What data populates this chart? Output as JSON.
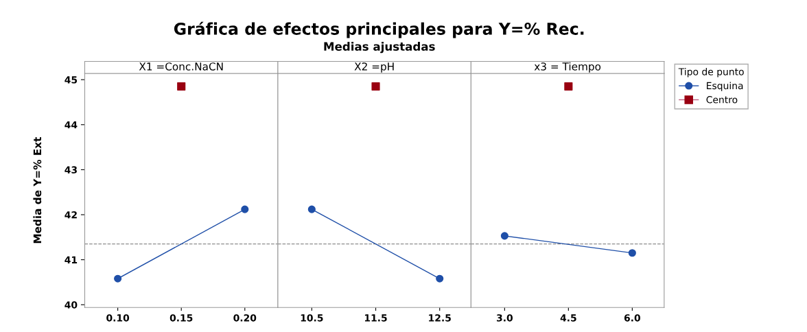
{
  "chart_data": [
    {
      "type": "line",
      "title": "X1 =Conc.NaCN",
      "ylabel": "Media de Y=% Ext",
      "annotations": [
        "Gráfica de efectos principales para Y=% Rec.",
        "Medias ajustadas"
      ],
      "xlim": [
        0.074,
        0.226
      ],
      "xticks": [
        {
          "value": 0.1,
          "label": "0.10"
        },
        {
          "value": 0.15,
          "label": "0.15"
        },
        {
          "value": 0.2,
          "label": "0.20"
        }
      ],
      "ylim": [
        39.94,
        45.14
      ],
      "yticks": [
        40,
        41,
        42,
        43,
        44,
        45
      ],
      "grid": false,
      "marker": "circle",
      "line_style": "solid",
      "ref_lines": [
        {
          "axis": "y",
          "value": 41.35,
          "color": "#8c8c8c",
          "line_style": "dashed"
        }
      ],
      "series": [
        {
          "color": "#1f4fa8",
          "x": [
            0.1,
            0.2
          ],
          "values": [
            40.58,
            42.12
          ]
        },
        {
          "type": "scatter",
          "marker": "square",
          "color": "#990011",
          "x": [
            0.15
          ],
          "values": [
            44.85
          ]
        }
      ]
    },
    {
      "type": "line",
      "title": "X2 =pH",
      "xlim": [
        9.97,
        12.99
      ],
      "xticks": [
        10.5,
        11.5,
        12.5
      ],
      "ylim": [
        39.94,
        45.14
      ],
      "yticks": [
        40,
        41,
        42,
        43,
        44,
        45
      ],
      "tick_labels": "x",
      "grid": false,
      "marker": "circle",
      "line_style": "solid",
      "ref_lines": [
        {
          "axis": "y",
          "value": 41.35,
          "color": "#8c8c8c",
          "line_style": "dashed"
        }
      ],
      "series": [
        {
          "color": "#1f4fa8",
          "x": [
            10.5,
            12.5
          ],
          "values": [
            42.12,
            40.58
          ]
        },
        {
          "type": "scatter",
          "marker": "square",
          "color": "#990011",
          "x": [
            11.5
          ],
          "values": [
            44.85
          ]
        }
      ]
    },
    {
      "type": "line",
      "title": "x3 = Tiempo",
      "xlim": [
        2.21,
        6.75
      ],
      "xticks": [
        {
          "value": 3,
          "label": "3.0"
        },
        {
          "value": 4.5,
          "label": "4.5"
        },
        {
          "value": 6,
          "label": "6.0"
        }
      ],
      "ylim": [
        39.94,
        45.14
      ],
      "yticks": [
        40,
        41,
        42,
        43,
        44,
        45
      ],
      "tick_labels": "x",
      "grid": false,
      "marker": "circle",
      "line_style": "solid",
      "legend": "right",
      "legend_title": "Tipo de punto",
      "ref_lines": [
        {
          "axis": "y",
          "value": 41.35,
          "color": "#8c8c8c",
          "line_style": "dashed"
        }
      ],
      "series": [
        {
          "name": "Esquina",
          "color": "#1f4fa8",
          "x": [
            3,
            6
          ],
          "values": [
            41.53,
            41.15
          ]
        },
        {
          "type": "scatter",
          "name": "Centro",
          "marker": "square",
          "color": "#990011",
          "x": [
            4.5
          ],
          "values": [
            44.85
          ]
        }
      ]
    }
  ]
}
